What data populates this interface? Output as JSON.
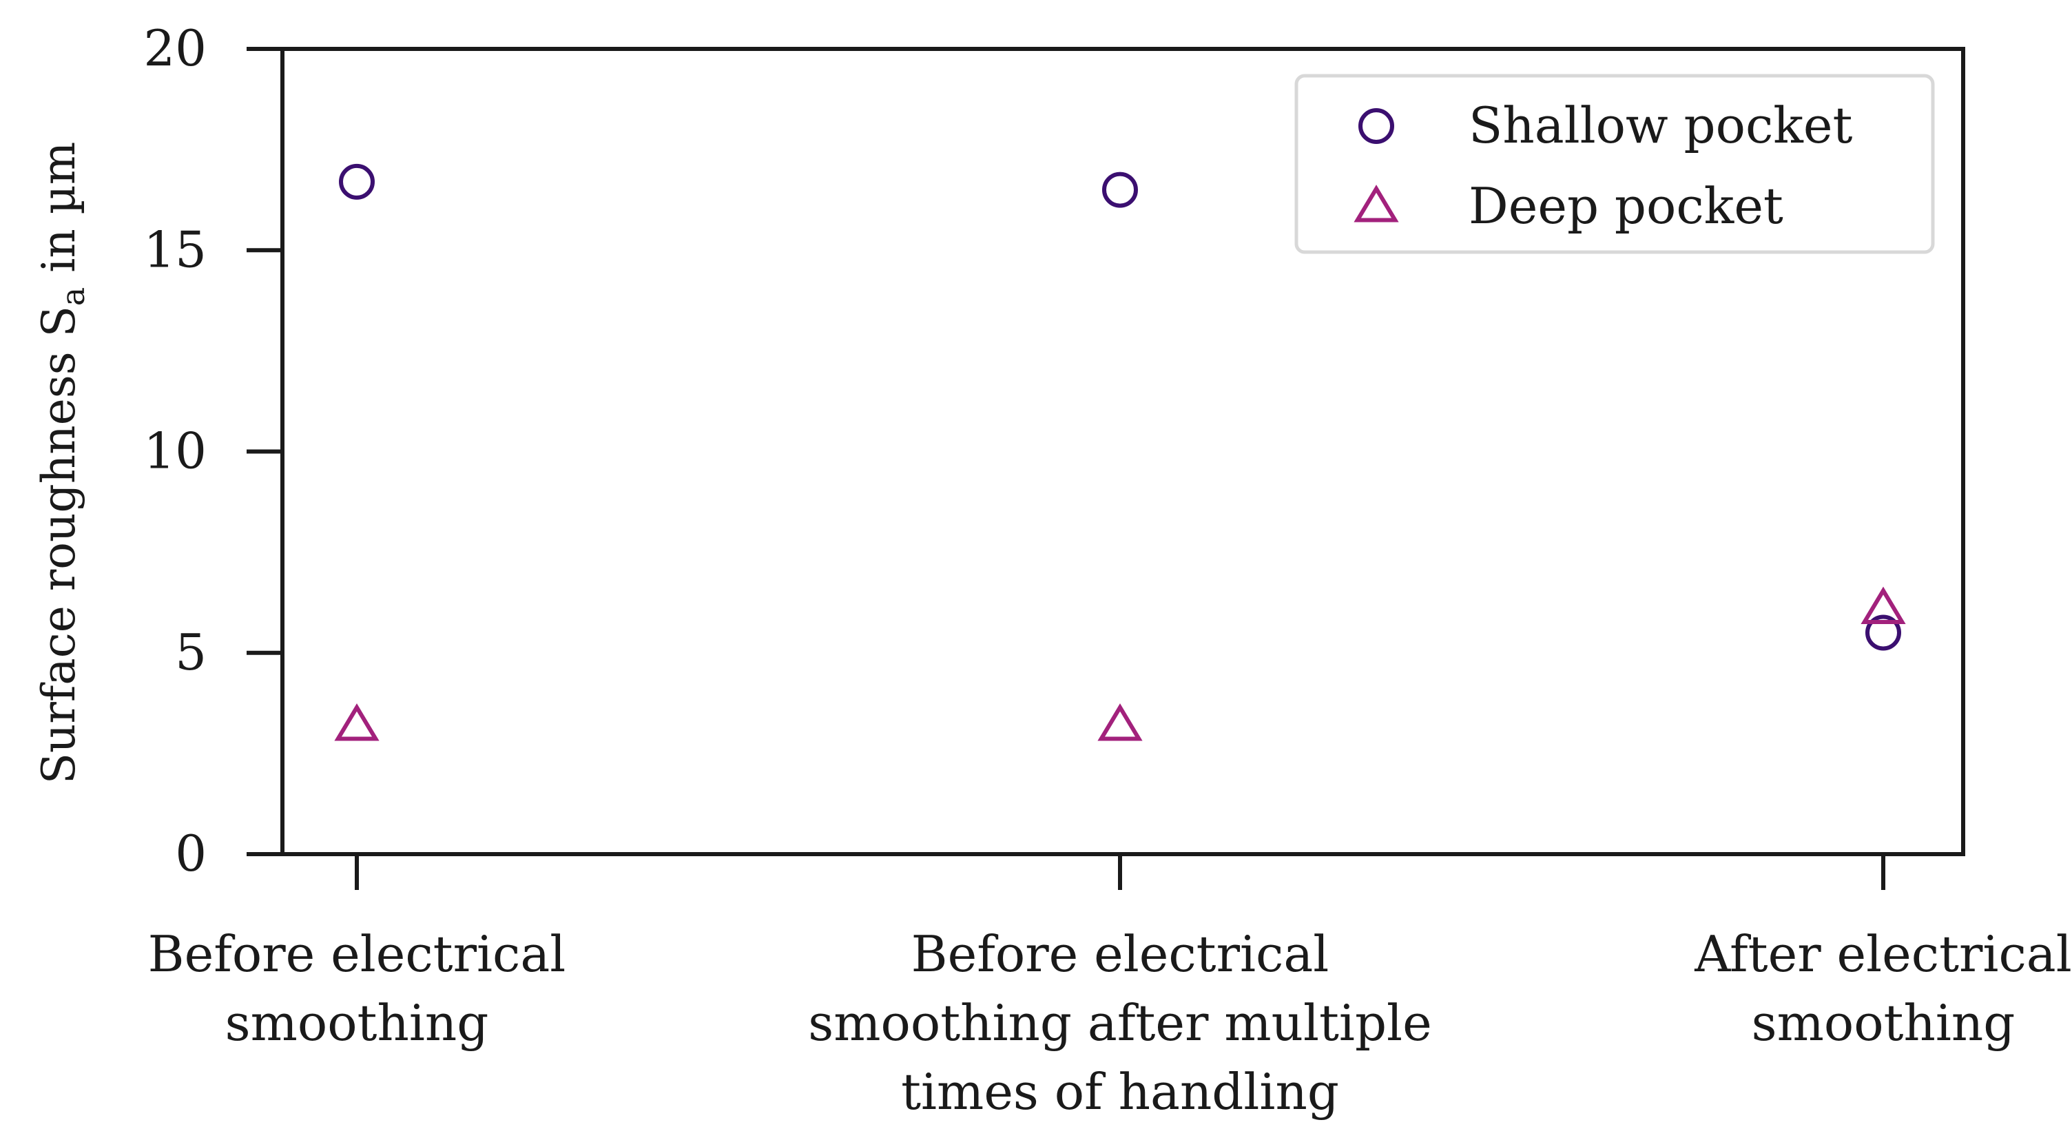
{
  "chart_data": {
    "type": "scatter",
    "title": "",
    "ylabel": "Surface roughness S",
    "ylabel_sub": "a",
    "ylabel_unit": " in µm",
    "ylim": [
      0,
      20
    ],
    "yticks": [
      0,
      5,
      10,
      15,
      20
    ],
    "grid": false,
    "legend_position": "top-right",
    "categories": [
      [
        "Before electrical",
        "smoothing"
      ],
      [
        "Before electrical",
        "smoothing after multiple",
        "times of handling"
      ],
      [
        "After electrical",
        "smoothing"
      ]
    ],
    "series": [
      {
        "name": "Shallow pocket",
        "marker": "circle",
        "color": "#3b0f70",
        "values": [
          16.7,
          16.5,
          5.5
        ]
      },
      {
        "name": "Deep pocket",
        "marker": "triangle",
        "color": "#a2217c",
        "values": [
          3.2,
          3.2,
          6.1
        ]
      }
    ]
  }
}
